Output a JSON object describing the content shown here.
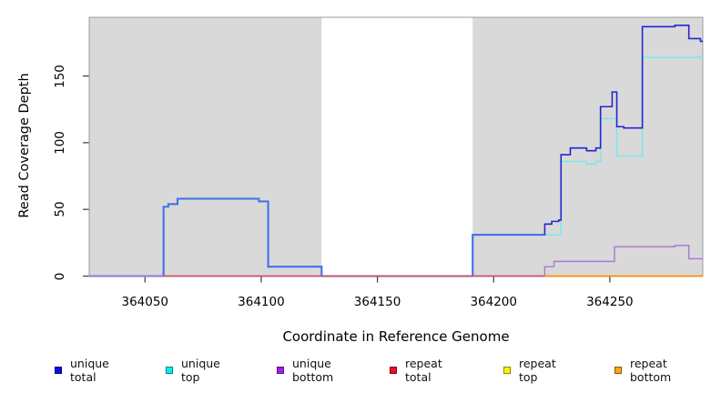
{
  "figure": {
    "kind": "R step-line coverage plot",
    "background": "#ffffff",
    "panel_color": "#d9d9d9",
    "frame_color": "#9c9c9c",
    "tick_color": "#3a3a3a"
  },
  "axes": {
    "x": {
      "label": "Coordinate in Reference Genome",
      "ticks": [
        {
          "value": 364050,
          "label": "364050"
        },
        {
          "value": 364100,
          "label": "364100"
        },
        {
          "value": 364150,
          "label": "364150"
        },
        {
          "value": 364200,
          "label": "364200"
        },
        {
          "value": 364250,
          "label": "364250"
        }
      ]
    },
    "y": {
      "label": "Read Coverage Depth",
      "ticks": [
        {
          "value": 0,
          "label": "0"
        },
        {
          "value": 50,
          "label": "50"
        },
        {
          "value": 100,
          "label": "100"
        },
        {
          "value": 150,
          "label": "150"
        }
      ]
    }
  },
  "chart_data": {
    "type": "line",
    "subtype": "step-after",
    "title": "",
    "xlabel": "Coordinate in Reference Genome",
    "ylabel": "Read Coverage Depth",
    "xlim": [
      364026,
      364290
    ],
    "ylim": [
      0,
      194
    ],
    "grid": false,
    "legend_position": "bottom",
    "shaded_regions": [
      [
        364026,
        364126
      ],
      [
        364191,
        364290
      ]
    ],
    "unshaded_gap": [
      364126,
      364191
    ],
    "draw_order": [
      1,
      0,
      2,
      3,
      4,
      5
    ],
    "overlap_note": "unique total and unique top coincide on 364026-364222; overlap renders as light royal blue",
    "series": [
      {
        "name": "unique total",
        "color": "#2326ce",
        "overlap_color": "#4273e8",
        "width": 1.6,
        "steps": [
          [
            364026,
            0
          ],
          [
            364058,
            52
          ],
          [
            364060,
            54
          ],
          [
            364064,
            58
          ],
          [
            364099,
            56
          ],
          [
            364103,
            7
          ],
          [
            364126,
            0
          ],
          [
            364191,
            31
          ],
          [
            364222,
            39
          ],
          [
            364225,
            41
          ],
          [
            364228,
            42
          ],
          [
            364229,
            91
          ],
          [
            364233,
            96
          ],
          [
            364240,
            94
          ],
          [
            364244,
            96
          ],
          [
            364246,
            127
          ],
          [
            364251,
            138
          ],
          [
            364253,
            112
          ],
          [
            364256,
            111
          ],
          [
            364264,
            187
          ],
          [
            364278,
            188
          ],
          [
            364284,
            178
          ],
          [
            364289,
            176
          ],
          [
            364290,
            176
          ]
        ]
      },
      {
        "name": "unique top",
        "color": "#7fe8e8",
        "width": 1.6,
        "steps": [
          [
            364026,
            0
          ],
          [
            364058,
            52
          ],
          [
            364060,
            54
          ],
          [
            364064,
            58
          ],
          [
            364099,
            56
          ],
          [
            364103,
            7
          ],
          [
            364126,
            0
          ],
          [
            364191,
            31
          ],
          [
            364229,
            86
          ],
          [
            364240,
            84
          ],
          [
            364244,
            86
          ],
          [
            364246,
            118
          ],
          [
            364253,
            90
          ],
          [
            364264,
            164
          ],
          [
            364290,
            164
          ]
        ]
      },
      {
        "name": "unique bottom",
        "color": "#a678d2",
        "width": 1.4,
        "steps": [
          [
            364026,
            0
          ],
          [
            364222,
            7
          ],
          [
            364226,
            11
          ],
          [
            364252,
            22
          ],
          [
            364278,
            23
          ],
          [
            364284,
            13
          ],
          [
            364290,
            13
          ]
        ]
      },
      {
        "name": "repeat total",
        "color": "#d0495c",
        "width": 1.4,
        "steps": [
          [
            364058,
            0
          ],
          [
            364290,
            0
          ]
        ]
      },
      {
        "name": "repeat top",
        "color": "#f5e636",
        "width": 1.4,
        "steps": [
          [
            364222,
            0
          ],
          [
            364290,
            0
          ]
        ]
      },
      {
        "name": "repeat bottom",
        "color": "#ff9010",
        "width": 1.8,
        "steps": [
          [
            364222,
            0
          ],
          [
            364290,
            0
          ]
        ]
      }
    ]
  },
  "legend": {
    "items": [
      {
        "label": "unique total",
        "color": "#0a0ae6"
      },
      {
        "label": "unique top",
        "color": "#00f0f0"
      },
      {
        "label": "unique bottom",
        "color": "#a020f0"
      },
      {
        "label": "repeat total",
        "color": "#e8102a"
      },
      {
        "label": "repeat top",
        "color": "#fff500"
      },
      {
        "label": "repeat bottom",
        "color": "#ffa510"
      }
    ]
  }
}
